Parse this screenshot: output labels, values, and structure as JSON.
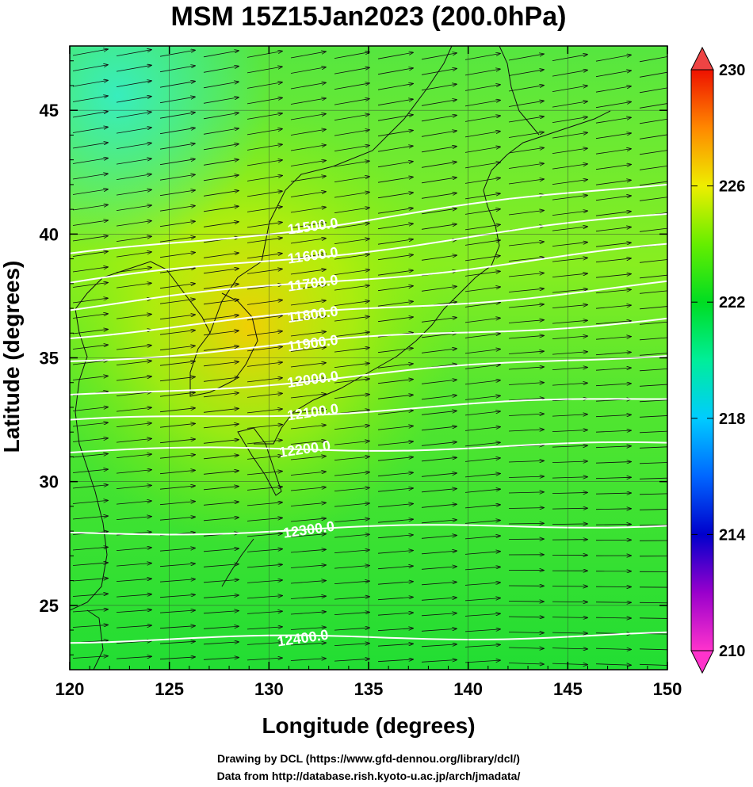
{
  "figure": {
    "title": "MSM 15Z15Jan2023 (200.0hPa)",
    "credit_line1": "Drawing by DCL (https://www.gfd-dennou.org/library/dcl/)",
    "credit_line2": "Data from http://database.rish.kyoto-u.ac.jp/arch/jmadata/"
  },
  "chart_data": {
    "type": "heatmap",
    "title": "MSM 15Z15Jan2023 (200.0hPa)",
    "xlabel": "Longitude (degrees)",
    "ylabel": "Latitude  (degrees)",
    "xlim": [
      120,
      150
    ],
    "ylim": [
      22.4,
      47.6
    ],
    "x_ticks": [
      "120",
      "125",
      "130",
      "135",
      "140",
      "145",
      "150"
    ],
    "y_ticks": [
      "25",
      "30",
      "35",
      "40",
      "45"
    ],
    "grid": true,
    "colorbar": {
      "min": 210,
      "max": 230,
      "ticks": [
        "210",
        "214",
        "218",
        "222",
        "226",
        "230"
      ],
      "position": "right"
    },
    "contours": [
      {
        "label": "11500.0",
        "lat_west": 39.1,
        "lat_east": 42.1,
        "label_lon": 132.2
      },
      {
        "label": "11600.0",
        "lat_west": 38.0,
        "lat_east": 40.8,
        "label_lon": 132.2
      },
      {
        "label": "11700.0",
        "lat_west": 37.0,
        "lat_east": 39.5,
        "label_lon": 132.2
      },
      {
        "label": "11800.0",
        "lat_west": 35.9,
        "lat_east": 38.0,
        "label_lon": 132.2
      },
      {
        "label": "11900.0",
        "lat_west": 34.9,
        "lat_east": 36.6,
        "label_lon": 132.2
      },
      {
        "label": "12000.0",
        "lat_west": 33.4,
        "lat_east": 35.2,
        "label_lon": 132.2
      },
      {
        "label": "12100.0",
        "lat_west": 32.4,
        "lat_east": 33.4,
        "label_lon": 132.2
      },
      {
        "label": "12200.0",
        "lat_west": 31.2,
        "lat_east": 31.5,
        "label_lon": 131.8
      },
      {
        "label": "12300.0",
        "lat_west": 27.9,
        "lat_east": 28.3,
        "label_lon": 132.0
      },
      {
        "label": "12400.0",
        "lat_west": 23.6,
        "lat_east": 23.8,
        "label_lon": 131.7
      }
    ],
    "wind": "westerly"
  }
}
